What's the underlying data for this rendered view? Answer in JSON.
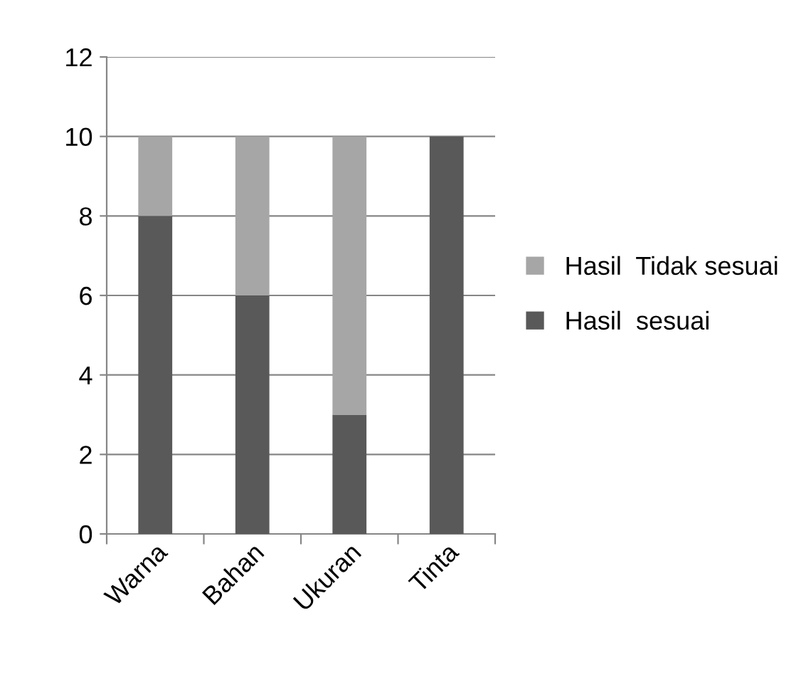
{
  "chart_data": {
    "type": "bar",
    "stacked": true,
    "categories": [
      "Warna",
      "Bahan",
      "Ukuran",
      "Tinta"
    ],
    "series": [
      {
        "name": "Hasil  sesuai",
        "color": "#595959",
        "values": [
          8,
          6,
          3,
          10
        ]
      },
      {
        "name": "Hasil  Tidak sesuai",
        "color": "#a6a6a6",
        "values": [
          2,
          4,
          7,
          0
        ]
      }
    ],
    "ylim": [
      0,
      12
    ],
    "yticks": [
      0,
      2,
      4,
      6,
      8,
      10,
      12
    ],
    "grid": "y",
    "legend": "right"
  }
}
